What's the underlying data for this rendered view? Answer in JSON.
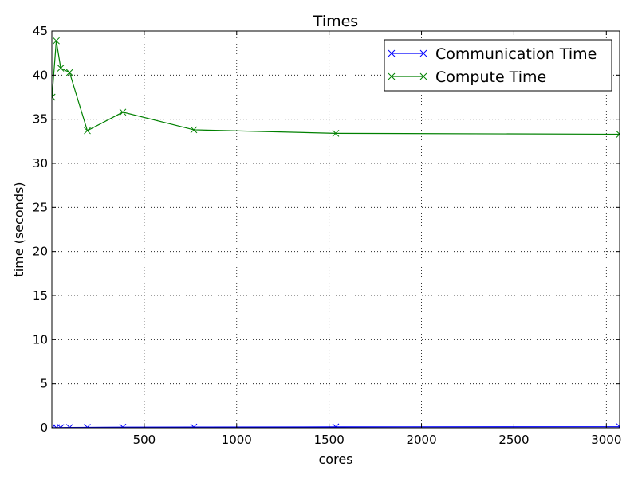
{
  "chart_data": {
    "type": "line",
    "title": "Times",
    "xlabel": "cores",
    "ylabel": "time (seconds)",
    "xlim": [
      0,
      3072
    ],
    "ylim": [
      0,
      45
    ],
    "xticks": [
      500,
      1000,
      1500,
      2000,
      2500,
      3000
    ],
    "yticks": [
      0,
      5,
      10,
      15,
      20,
      25,
      30,
      35,
      40,
      45
    ],
    "grid": true,
    "legend_position": "top-right",
    "x": [
      1,
      24,
      48,
      96,
      192,
      384,
      768,
      1536,
      3072
    ],
    "series": [
      {
        "name": "Communication Time",
        "color": "#0000ff",
        "marker": "x",
        "values": [
          0.0,
          0.02,
          0.03,
          0.04,
          0.05,
          0.07,
          0.08,
          0.1,
          0.12
        ]
      },
      {
        "name": "Compute Time",
        "color": "#008000",
        "marker": "x",
        "values": [
          37.5,
          43.9,
          40.8,
          40.3,
          33.7,
          35.8,
          33.8,
          33.4,
          33.3
        ]
      }
    ]
  }
}
